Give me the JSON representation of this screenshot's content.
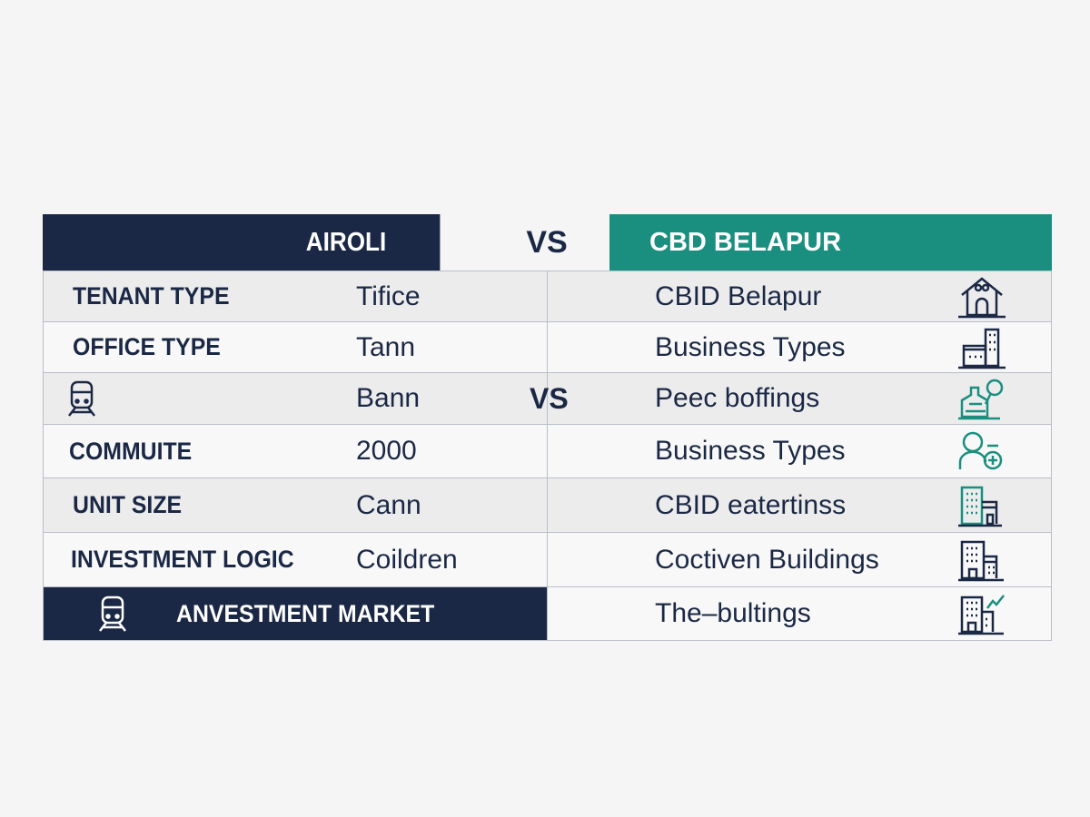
{
  "header": {
    "left_title": "AIROLI",
    "vs": "VS",
    "right_title": "CBD BELAPUR"
  },
  "colors": {
    "navy": "#1b2845",
    "teal": "#1a8f80"
  },
  "rows": [
    {
      "label": "TENANT TYPE",
      "left_value": "Tifice",
      "right_value": "CBID Belapur",
      "right_icon": "house-icon"
    },
    {
      "label": "OFFICE TYPE",
      "left_value": "Tann",
      "right_value": "Business Types",
      "right_icon": "office-building-icon"
    },
    {
      "label": "",
      "left_icon": "train-icon",
      "left_value": "Bann",
      "mid_vs": "VS",
      "right_value": "Peec boffings",
      "right_icon": "factory-icon"
    },
    {
      "label": "COMMUITE",
      "left_value": "2000",
      "right_value": "Business Types",
      "right_icon": "person-add-icon"
    },
    {
      "label": "UNIT SIZE",
      "left_value": "Cann",
      "right_value": "CBID eatertinss",
      "right_icon": "building-icon"
    },
    {
      "label": "INVESTMENT LOGIC",
      "left_value": "Coildren",
      "right_value": "Coctiven Buildings",
      "right_icon": "buildings-icon"
    },
    {
      "label": "ANVESTMENT MARKET",
      "left_icon": "train-icon",
      "right_value": "The–bultings",
      "right_icon": "buildings-growth-icon"
    }
  ]
}
